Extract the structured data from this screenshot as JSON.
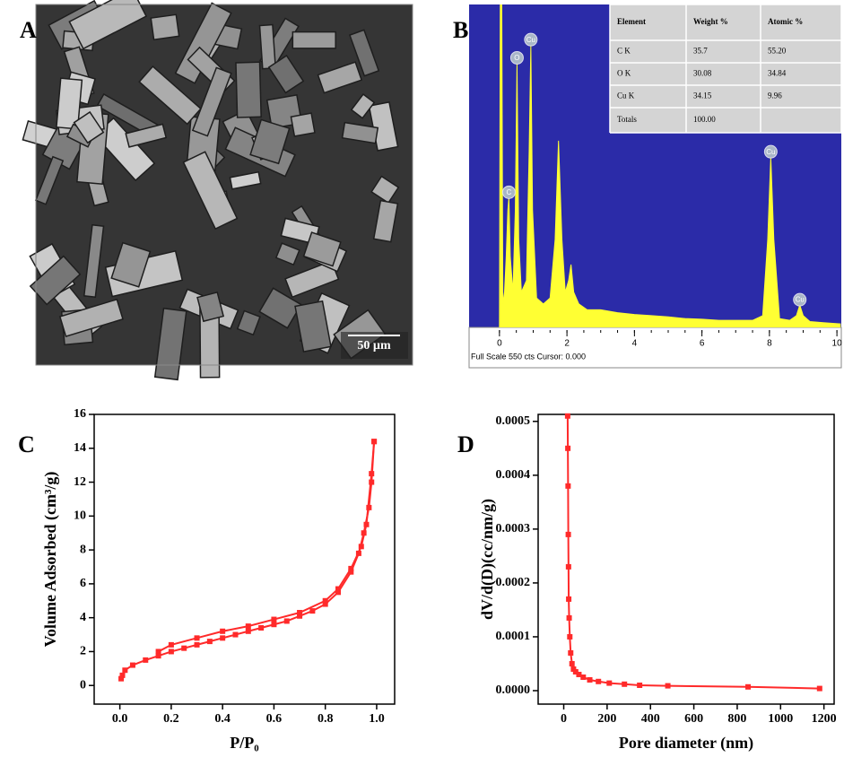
{
  "chart_data": [
    {
      "type": "image",
      "panel_label": "A",
      "scale_bar": "50 µm"
    },
    {
      "type": "spectrum",
      "panel_label": "B",
      "footer": "Full Scale 550 cts Cursor: 0.000",
      "xlim": [
        -0.9,
        10.13
      ],
      "ylim": [
        0,
        550
      ],
      "xticks": [
        0,
        2,
        4,
        6,
        8,
        10
      ],
      "color": "#ffff33",
      "background": "#2b2ba8",
      "series": [
        {
          "x": [
            0,
            0.03,
            0.06,
            0.1,
            0.15,
            0.2,
            0.25,
            0.28,
            0.32,
            0.4,
            0.47,
            0.52,
            0.57,
            0.65,
            0.8,
            0.88,
            0.93,
            0.98,
            1.1,
            1.3,
            1.5,
            1.65,
            1.75,
            1.85,
            1.95,
            2.05,
            2.12,
            2.2,
            2.35,
            2.6,
            3.0,
            3.5,
            4.0,
            4.5,
            5.0,
            5.5,
            6.0,
            6.5,
            7.0,
            7.5,
            7.8,
            7.95,
            8.04,
            8.13,
            8.3,
            8.6,
            8.8,
            8.9,
            9.0,
            9.2,
            9.6,
            10.1
          ],
          "values": [
            0,
            700,
            700,
            40,
            60,
            120,
            200,
            221,
            120,
            60,
            200,
            450,
            150,
            60,
            80,
            300,
            481,
            200,
            50,
            40,
            50,
            150,
            318,
            150,
            60,
            80,
            107,
            60,
            40,
            30,
            30,
            25,
            22,
            20,
            18,
            15,
            14,
            12,
            12,
            12,
            20,
            150,
            290,
            150,
            15,
            12,
            20,
            38,
            20,
            10,
            8,
            6
          ]
        }
      ],
      "annotations": [
        {
          "text": "C",
          "x": 0.28,
          "y": 221
        },
        {
          "text": "O",
          "x": 0.52,
          "y": 450
        },
        {
          "text": "Cu",
          "x": 0.93,
          "y": 481
        },
        {
          "text": "Cu",
          "x": 8.04,
          "y": 290
        },
        {
          "text": "Cu",
          "x": 8.9,
          "y": 38
        }
      ],
      "table": {
        "columns": [
          "Element",
          "Weight %",
          "Atomic %"
        ],
        "rows": [
          [
            "C K",
            "35.7",
            "55.20"
          ],
          [
            "O K",
            "30.08",
            "34.84"
          ],
          [
            "Cu K",
            "34.15",
            "9.96"
          ],
          [
            "Totals",
            "100.00"
          ]
        ]
      }
    },
    {
      "type": "line",
      "panel_label": "C",
      "xlabel": "P/P₀",
      "ylabel": "Volume Adsorbed (cm³/g)",
      "xlim": [
        -0.1,
        1.07
      ],
      "ylim": [
        -1.1,
        16
      ],
      "xticks": [
        {
          "value": 0,
          "label": "0.0"
        },
        {
          "value": 0.2,
          "label": "0.2"
        },
        {
          "value": 0.4,
          "label": "0.4"
        },
        {
          "value": 0.6,
          "label": "0.6"
        },
        {
          "value": 0.8,
          "label": "0.8"
        },
        {
          "value": 1,
          "label": "1.0"
        }
      ],
      "yticks": [
        0,
        2,
        4,
        6,
        8,
        10,
        12,
        14,
        16
      ],
      "series": [
        {
          "color": "#ff2a2a",
          "x": [
            0.005,
            0.01,
            0.02,
            0.05,
            0.1,
            0.15,
            0.2,
            0.25,
            0.3,
            0.35,
            0.4,
            0.45,
            0.5,
            0.55,
            0.6,
            0.65,
            0.7,
            0.75,
            0.8,
            0.85,
            0.9,
            0.93,
            0.95,
            0.97,
            0.98,
            0.99
          ],
          "values": [
            0.4,
            0.6,
            0.9,
            1.2,
            1.5,
            1.75,
            2.0,
            2.2,
            2.4,
            2.6,
            2.8,
            3.0,
            3.2,
            3.4,
            3.6,
            3.8,
            4.1,
            4.4,
            4.8,
            5.5,
            6.7,
            7.8,
            9.0,
            10.5,
            12.0,
            14.4
          ]
        },
        {
          "color": "#ff2a2a",
          "x": [
            0.99,
            0.98,
            0.96,
            0.94,
            0.9,
            0.85,
            0.8,
            0.7,
            0.6,
            0.5,
            0.4,
            0.3,
            0.2,
            0.15
          ],
          "values": [
            14.4,
            12.5,
            9.5,
            8.2,
            6.9,
            5.7,
            5.0,
            4.3,
            3.9,
            3.5,
            3.2,
            2.8,
            2.4,
            2.0
          ]
        }
      ]
    },
    {
      "type": "line",
      "panel_label": "D",
      "xlabel": "Pore diameter (nm)",
      "ylabel": "dV/d(D)(cc/nm/g)",
      "xlim": [
        -118,
        1247
      ],
      "ylim": [
        -2.5e-05,
        0.000513
      ],
      "xticks": [
        0,
        200,
        400,
        600,
        800,
        1000,
        1200
      ],
      "yticks": [
        {
          "value": 0,
          "label": "0.0000"
        },
        {
          "value": 0.0001,
          "label": "0.0001"
        },
        {
          "value": 0.0002,
          "label": "0.0002"
        },
        {
          "value": 0.0003,
          "label": "0.0003"
        },
        {
          "value": 0.0004,
          "label": "0.0004"
        },
        {
          "value": 0.0005,
          "label": "0.0005"
        }
      ],
      "series": [
        {
          "color": "#ff2a2a",
          "x": [
            18,
            19,
            20,
            21,
            22,
            23,
            25,
            28,
            32,
            38,
            45,
            55,
            70,
            90,
            120,
            160,
            210,
            280,
            350,
            480,
            850,
            1180
          ],
          "values": [
            0.00051,
            0.00045,
            0.00038,
            0.00029,
            0.00023,
            0.00017,
            0.000135,
            0.0001,
            7e-05,
            5e-05,
            4e-05,
            3.5e-05,
            3e-05,
            2.5e-05,
            2e-05,
            1.7e-05,
            1.4e-05,
            1.2e-05,
            1e-05,
            9e-06,
            7e-06,
            4e-06
          ]
        }
      ]
    }
  ]
}
